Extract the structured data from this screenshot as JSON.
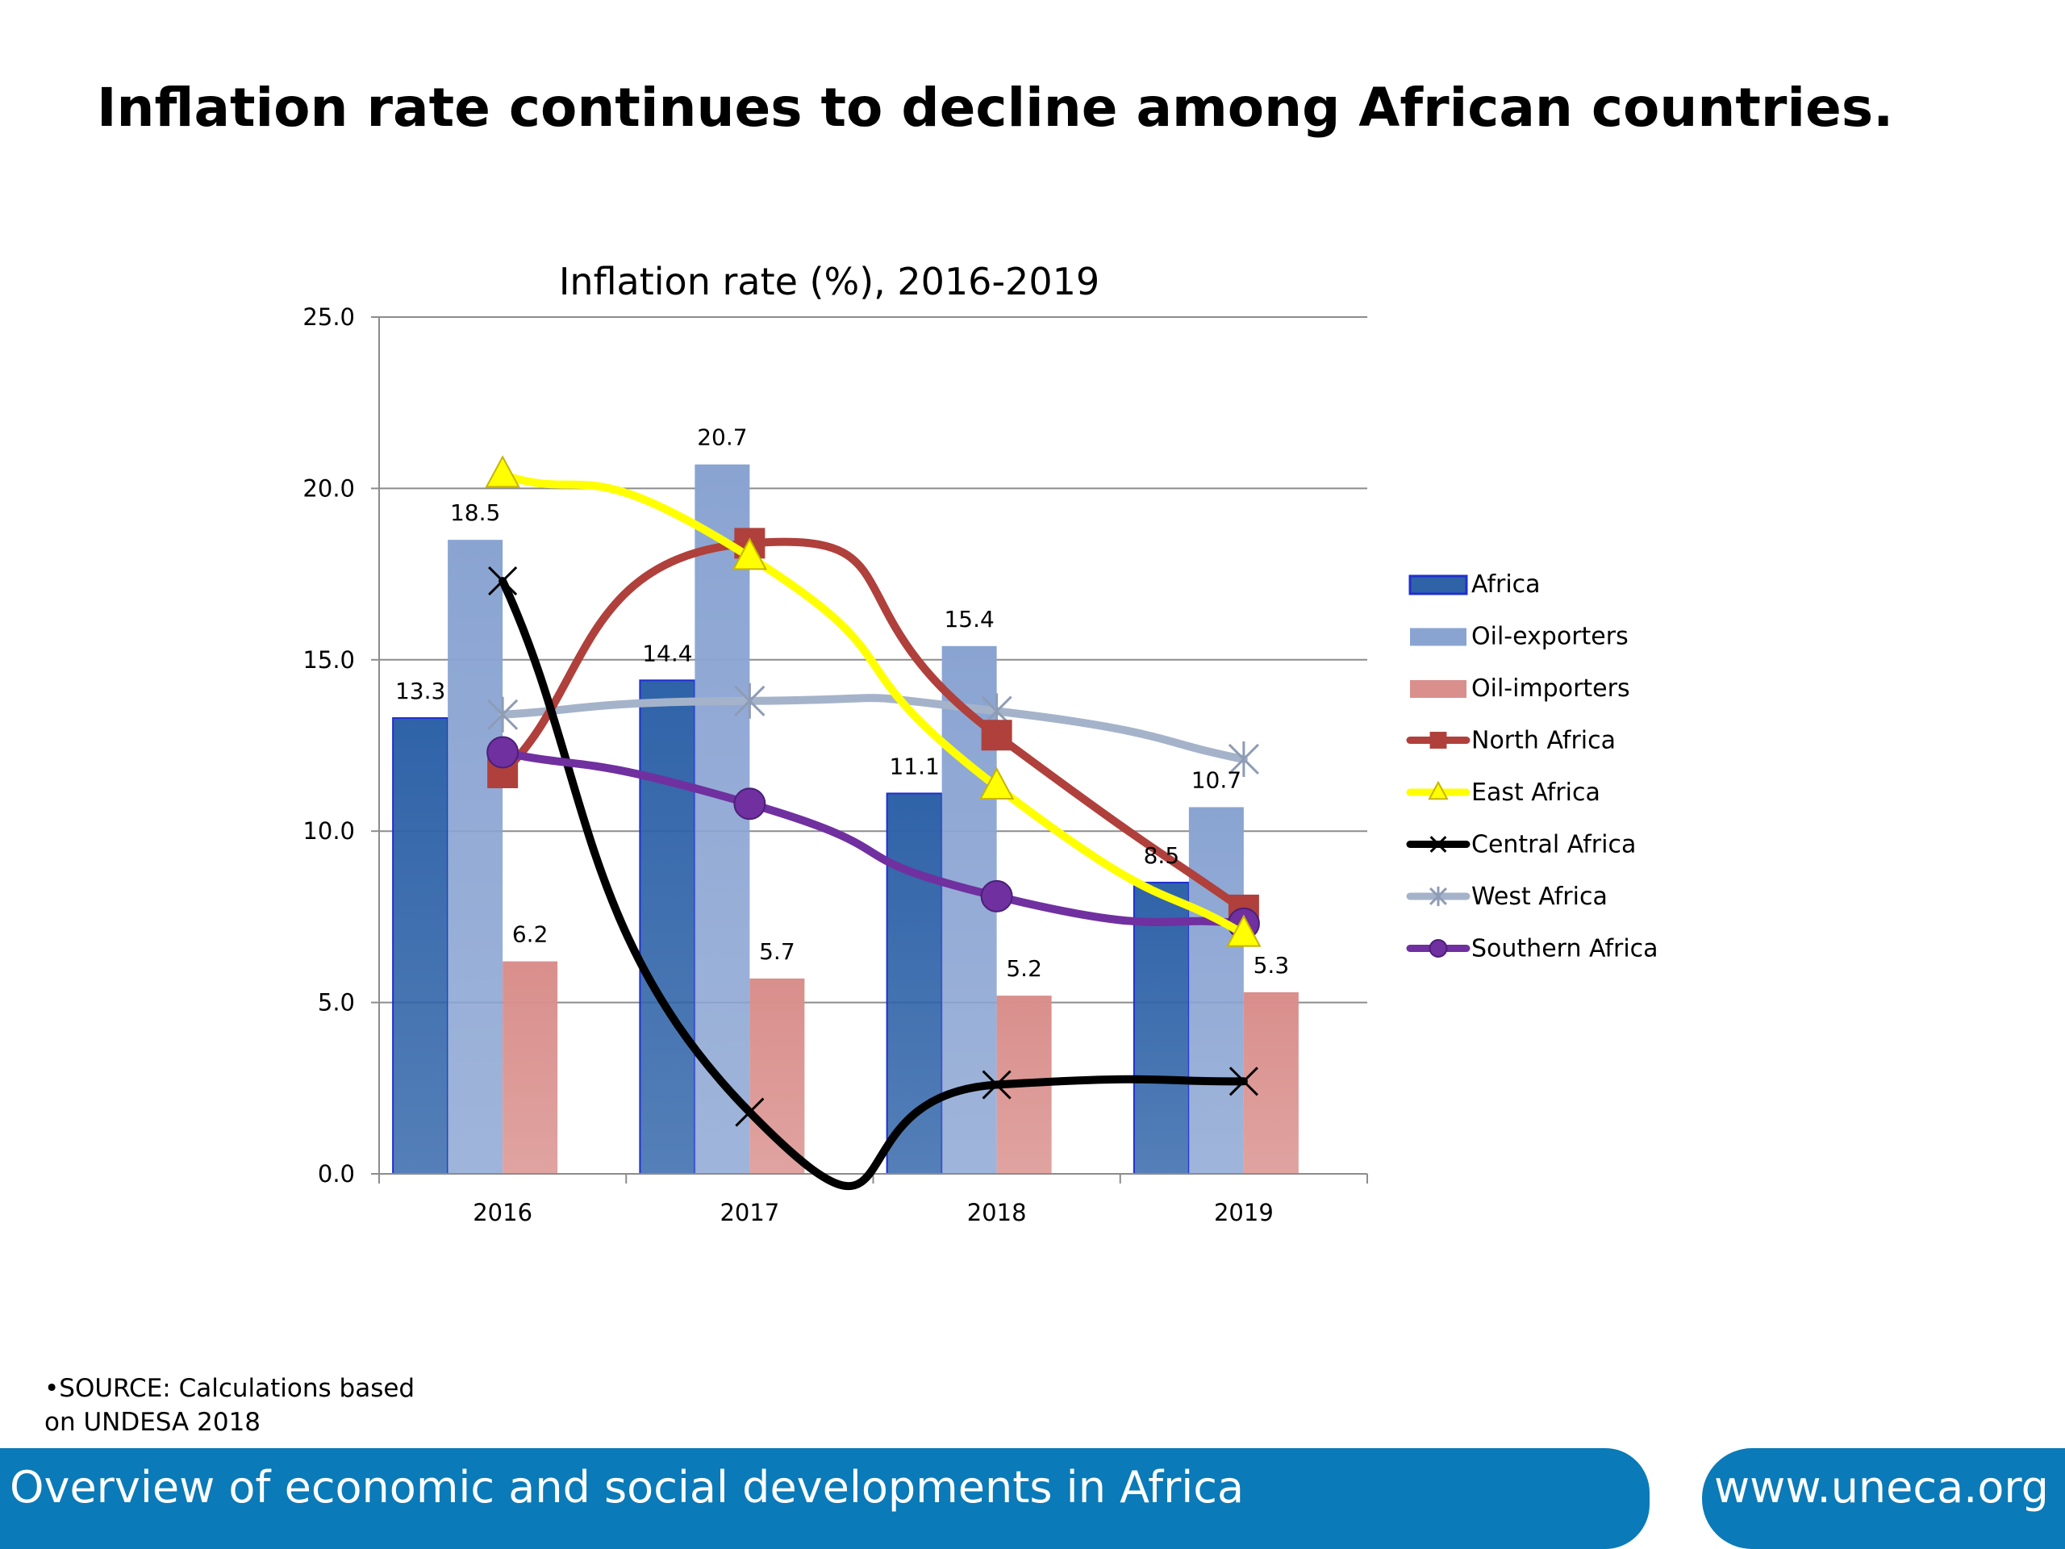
{
  "slide": {
    "title": "Inflation rate continues to decline among African countries.",
    "source_line1": "•SOURCE: Calculations based",
    "source_line2": "on UNDESA 2018",
    "footer_text": "Overview of economic and social developments in Africa",
    "footer_url": "www.uneca.org"
  },
  "chart_data": {
    "type": "bar",
    "title": "Inflation rate (%), 2016-2019",
    "xlabel": "",
    "ylabel": "",
    "categories": [
      "2016",
      "2017",
      "2018",
      "2019"
    ],
    "ylim": [
      0,
      25
    ],
    "yticks": [
      "0.0",
      "5.0",
      "10.0",
      "15.0",
      "20.0",
      "25.0"
    ],
    "grid": true,
    "legend_position": "right",
    "bar_series": [
      {
        "name": "Africa",
        "values": [
          13.3,
          14.4,
          11.1,
          8.5
        ],
        "labels": [
          "13.3",
          "14.4",
          "11.1",
          "8.5"
        ],
        "color": "#2f63a8"
      },
      {
        "name": "Oil-exporters",
        "values": [
          18.5,
          20.7,
          15.4,
          10.7
        ],
        "labels": [
          "18.5",
          "20.7",
          "15.4",
          "10.7"
        ],
        "color": "#8aa4d2"
      },
      {
        "name": "Oil-importers",
        "values": [
          6.2,
          5.7,
          5.2,
          5.3
        ],
        "labels": [
          "6.2",
          "5.7",
          "5.2",
          "5.3"
        ],
        "color": "#d98f8c"
      }
    ],
    "line_series": [
      {
        "name": "North Africa",
        "values": [
          11.7,
          18.4,
          12.8,
          7.7
        ],
        "color": "#b0403b",
        "marker": "square"
      },
      {
        "name": "East Africa",
        "values": [
          20.4,
          18.0,
          11.3,
          7.0
        ],
        "color": "#ffff00",
        "marker": "triangle"
      },
      {
        "name": "Central Africa",
        "values": [
          17.3,
          1.8,
          2.6,
          2.7
        ],
        "color": "#000000",
        "marker": "x"
      },
      {
        "name": "West Africa",
        "values": [
          13.4,
          13.8,
          13.5,
          12.1
        ],
        "color": "#a5b3ca",
        "marker": "star"
      },
      {
        "name": "Southern Africa",
        "values": [
          12.3,
          10.8,
          8.1,
          7.3
        ],
        "color": "#7030a0",
        "marker": "circle"
      }
    ]
  }
}
